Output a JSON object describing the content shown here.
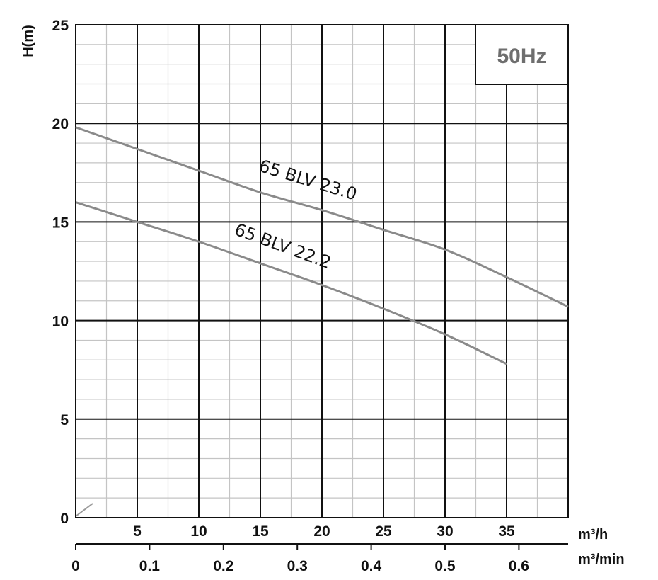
{
  "chart_data": {
    "type": "line",
    "ylabel": "H(m)",
    "xlabel": "m³/h",
    "x2label": "m³/min",
    "xlim": [
      0,
      40
    ],
    "ylim": [
      0,
      25
    ],
    "x_ticks": [
      5,
      10,
      15,
      20,
      25,
      30,
      35
    ],
    "y_ticks": [
      0,
      5,
      10,
      15,
      20,
      25
    ],
    "x2_ticks": [
      "0",
      "0.1",
      "0.2",
      "0.3",
      "0.4",
      "0.5",
      "0.6"
    ],
    "x2_tick_values_m3h": [
      0,
      6,
      12,
      18,
      24,
      30,
      36
    ],
    "grid": true,
    "frequency_label": "50Hz",
    "series": [
      {
        "name": "65 BLV 23.0",
        "color": "#8a8a8a",
        "x": [
          0,
          5,
          10,
          15,
          20,
          25,
          30,
          35,
          40
        ],
        "y": [
          19.8,
          18.7,
          17.6,
          16.5,
          15.6,
          14.6,
          13.6,
          12.2,
          10.7
        ]
      },
      {
        "name": "65 BLV 22.2",
        "color": "#8a8a8a",
        "x": [
          0,
          5,
          10,
          15,
          20,
          25,
          30,
          35
        ],
        "y": [
          16.0,
          15.0,
          14.0,
          12.9,
          11.8,
          10.6,
          9.3,
          7.8
        ]
      }
    ]
  }
}
